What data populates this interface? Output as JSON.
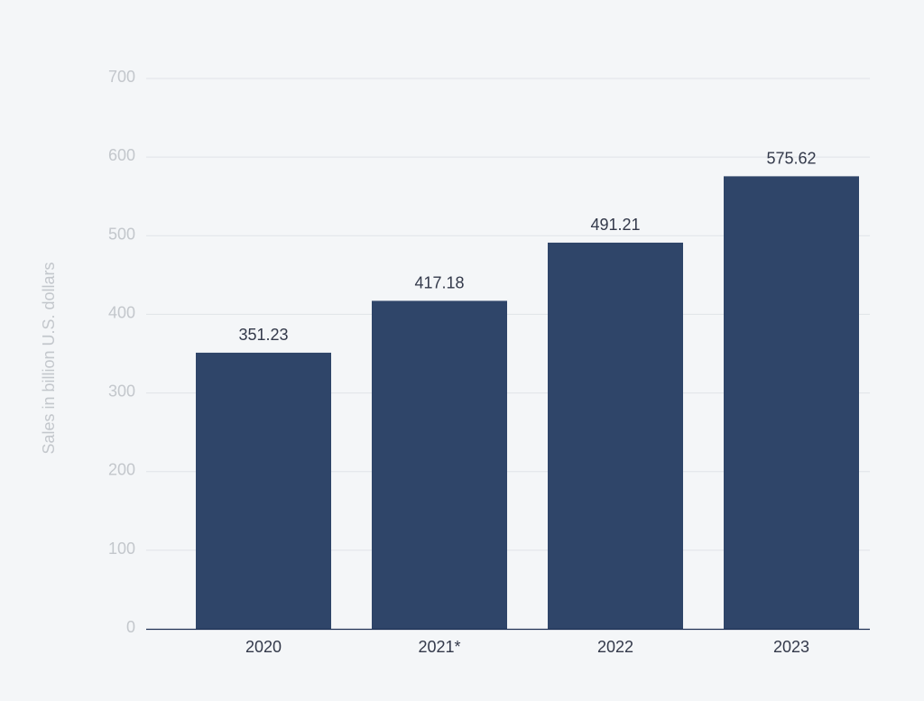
{
  "chart_data": {
    "type": "bar",
    "categories": [
      "2020",
      "2021*",
      "2022",
      "2023"
    ],
    "values": [
      351.23,
      417.18,
      491.21,
      575.62
    ],
    "value_labels": [
      "351.23",
      "417.18",
      "491.21",
      "575.62"
    ],
    "title": "",
    "xlabel": "",
    "ylabel": "Sales in billion U.S. dollars",
    "ylim": [
      0,
      700
    ],
    "yticks": [
      "0",
      "100",
      "200",
      "300",
      "400",
      "500",
      "600",
      "700"
    ],
    "grid": true,
    "bar_color": "#2f4569",
    "axis_color": "#1e3054",
    "background": "#f4f6f8"
  }
}
